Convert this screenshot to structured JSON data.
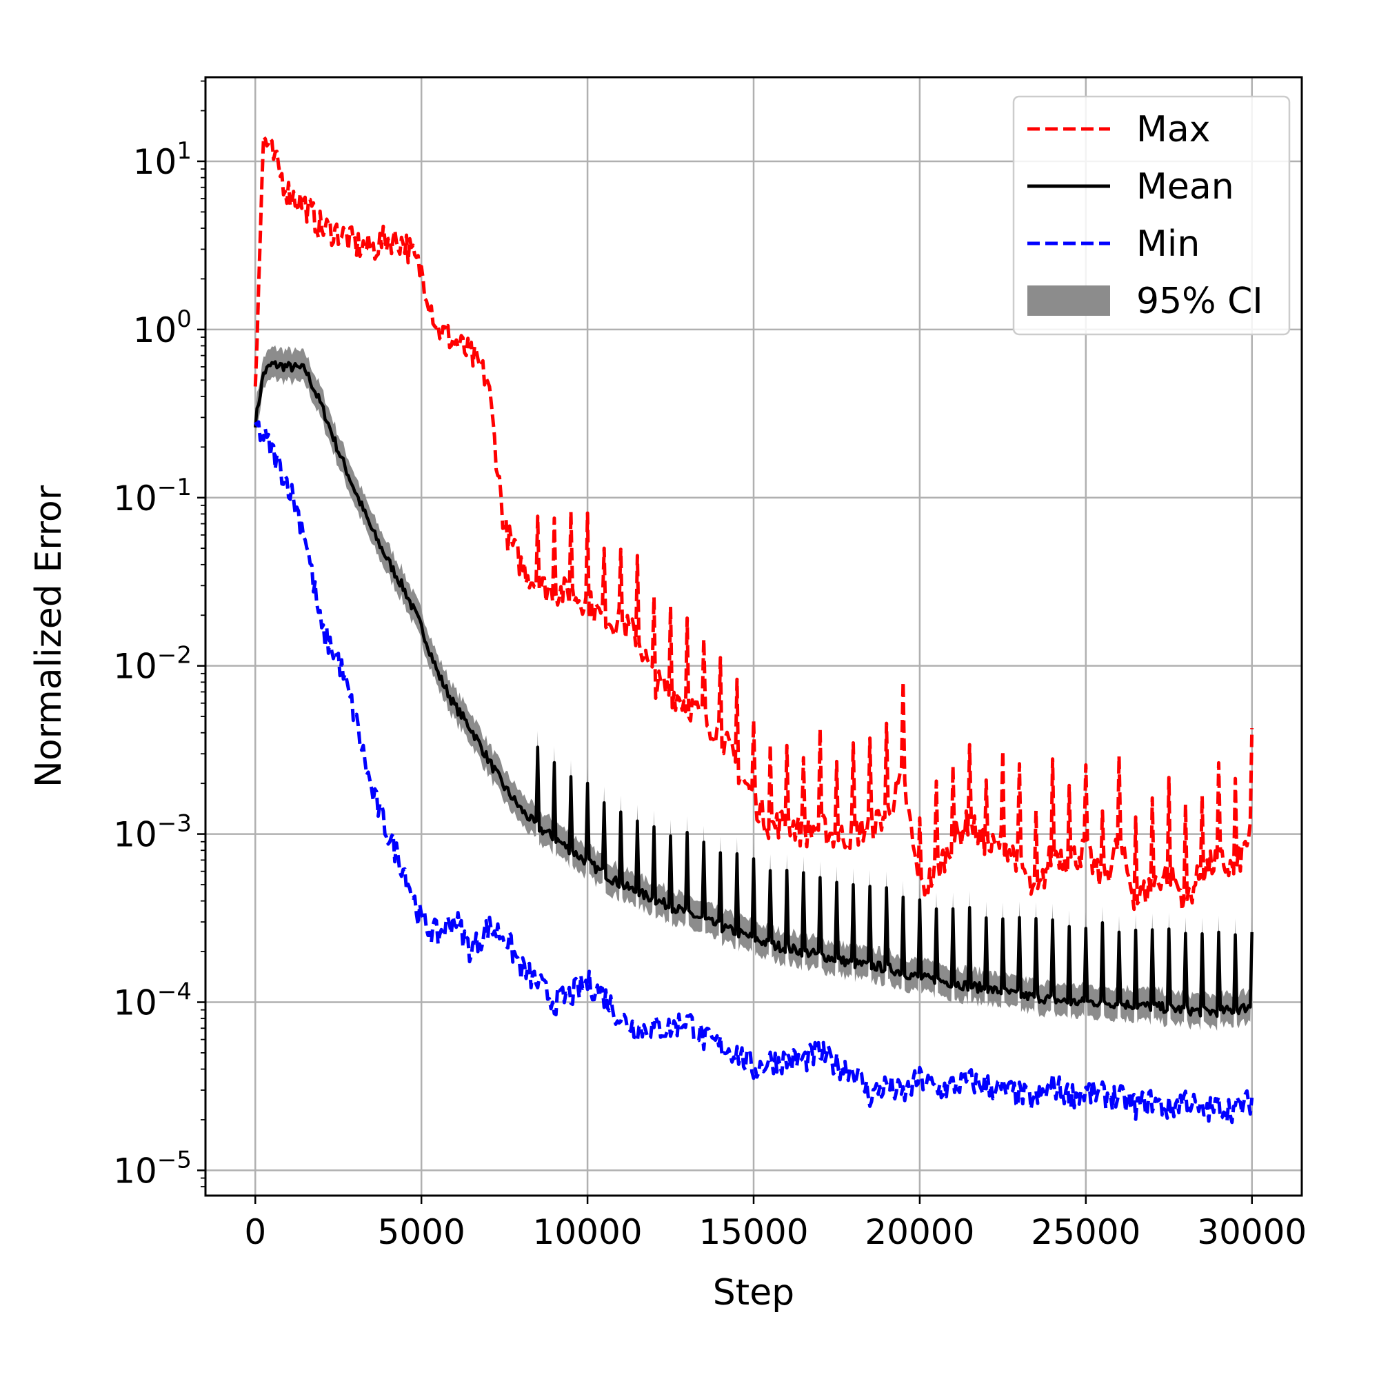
{
  "chart_data": {
    "type": "line",
    "title": "",
    "xlabel": "Step",
    "ylabel": "Normalized Error",
    "xscale": "linear",
    "yscale": "log",
    "xlim": [
      -1500,
      31500
    ],
    "ylim_log10": [
      -5.15,
      1.5
    ],
    "grid": true,
    "legend_position": "top-right",
    "x_ticks": [
      {
        "value": 0,
        "label": "0"
      },
      {
        "value": 5000,
        "label": "5000"
      },
      {
        "value": 10000,
        "label": "10000"
      },
      {
        "value": 15000,
        "label": "15000"
      },
      {
        "value": 20000,
        "label": "20000"
      },
      {
        "value": 25000,
        "label": "25000"
      },
      {
        "value": 30000,
        "label": "30000"
      }
    ],
    "y_ticks": [
      {
        "exp": 1,
        "base": "10",
        "sup": "1"
      },
      {
        "exp": 0,
        "base": "10",
        "sup": "0"
      },
      {
        "exp": -1,
        "base": "10",
        "sup": "−1"
      },
      {
        "exp": -2,
        "base": "10",
        "sup": "−2"
      },
      {
        "exp": -3,
        "base": "10",
        "sup": "−3"
      },
      {
        "exp": -4,
        "base": "10",
        "sup": "−4"
      },
      {
        "exp": -5,
        "base": "10",
        "sup": "−5"
      }
    ],
    "legend": [
      {
        "label": "Max",
        "color": "#ff0000",
        "style": "dashed"
      },
      {
        "label": "Mean",
        "color": "#000000",
        "style": "solid"
      },
      {
        "label": "Min",
        "color": "#0000ff",
        "style": "dashed"
      },
      {
        "label": "95% CI",
        "color": "#8c8c8c",
        "style": "band"
      }
    ],
    "x": [
      0,
      250,
      500,
      1000,
      1500,
      2000,
      2500,
      3000,
      3500,
      4000,
      4500,
      5000,
      5500,
      6000,
      6500,
      7000,
      7500,
      8000,
      8500,
      9000,
      9500,
      10000,
      10500,
      11000,
      11500,
      12000,
      12500,
      13000,
      13500,
      14000,
      14500,
      15000,
      15500,
      16000,
      16500,
      17000,
      17500,
      18000,
      18500,
      19000,
      19500,
      20000,
      20500,
      21000,
      21500,
      22000,
      22500,
      23000,
      23500,
      24000,
      24500,
      25000,
      25500,
      26000,
      26500,
      27000,
      27500,
      28000,
      28500,
      29000,
      29500,
      30000
    ],
    "series": [
      {
        "name": "Max",
        "color": "#ff0000",
        "style": "dashed",
        "values": [
          0.5,
          14,
          11,
          6.5,
          5.5,
          4,
          3.8,
          3.2,
          3,
          3.5,
          3.3,
          2.2,
          1.0,
          0.85,
          0.7,
          0.5,
          0.065,
          0.04,
          0.03,
          0.028,
          0.027,
          0.024,
          0.019,
          0.018,
          0.015,
          0.008,
          0.007,
          0.006,
          0.0048,
          0.004,
          0.0025,
          0.0016,
          0.0011,
          0.0012,
          0.001,
          0.0011,
          0.00095,
          0.001,
          0.0011,
          0.0013,
          0.0022,
          0.00045,
          0.0006,
          0.0009,
          0.0012,
          0.0008,
          0.0009,
          0.0007,
          0.0004,
          0.0008,
          0.0007,
          0.0008,
          0.0005,
          0.0009,
          0.0004,
          0.0005,
          0.0006,
          0.0004,
          0.0006,
          0.0007,
          0.0006,
          0.0011
        ]
      },
      {
        "name": "Mean",
        "color": "#000000",
        "style": "solid",
        "values": [
          0.28,
          0.55,
          0.62,
          0.6,
          0.58,
          0.35,
          0.19,
          0.11,
          0.065,
          0.042,
          0.028,
          0.017,
          0.009,
          0.0058,
          0.0042,
          0.0028,
          0.0019,
          0.0014,
          0.0011,
          0.00095,
          0.0008,
          0.00068,
          0.00058,
          0.0005,
          0.00045,
          0.00041,
          0.00037,
          0.00034,
          0.00031,
          0.00028,
          0.00026,
          0.00024,
          0.00022,
          0.00021,
          0.0002,
          0.00019,
          0.00018,
          0.00017,
          0.000165,
          0.00016,
          0.00015,
          0.00014,
          0.000135,
          0.00013,
          0.000125,
          0.00012,
          0.000115,
          0.00011,
          0.000107,
          0.000104,
          0.0001,
          0.0001,
          0.0001,
          9.8e-05,
          9.6e-05,
          9.4e-05,
          9.2e-05,
          9e-05,
          8.8e-05,
          8.8e-05,
          9e-05,
          9.5e-05
        ]
      },
      {
        "name": "Min",
        "color": "#0000ff",
        "style": "dashed",
        "values": [
          0.27,
          0.23,
          0.19,
          0.12,
          0.06,
          0.016,
          0.011,
          0.005,
          0.0018,
          0.001,
          0.0006,
          0.0003,
          0.00025,
          0.00032,
          0.0002,
          0.00028,
          0.00025,
          0.00016,
          0.00013,
          0.0001,
          0.00011,
          0.00013,
          0.00011,
          8e-05,
          7e-05,
          7e-05,
          7e-05,
          8e-05,
          6e-05,
          5.5e-05,
          5e-05,
          4e-05,
          4.5e-05,
          4.5e-05,
          4.5e-05,
          5e-05,
          4.2e-05,
          4e-05,
          2.8e-05,
          3.2e-05,
          2.8e-05,
          3.5e-05,
          3e-05,
          3.2e-05,
          3.4e-05,
          3.2e-05,
          3e-05,
          2.8e-05,
          2.6e-05,
          3.2e-05,
          2.8e-05,
          2.9e-05,
          2.8e-05,
          2.7e-05,
          2.4e-05,
          2.6e-05,
          2.3e-05,
          2.7e-05,
          2.2e-05,
          2.4e-05,
          2.3e-05,
          2.6e-05
        ]
      }
    ],
    "ci_band": {
      "label": "95% CI",
      "color": "#8c8c8c",
      "lower_factor": 0.82,
      "upper_factor": 1.25
    }
  }
}
